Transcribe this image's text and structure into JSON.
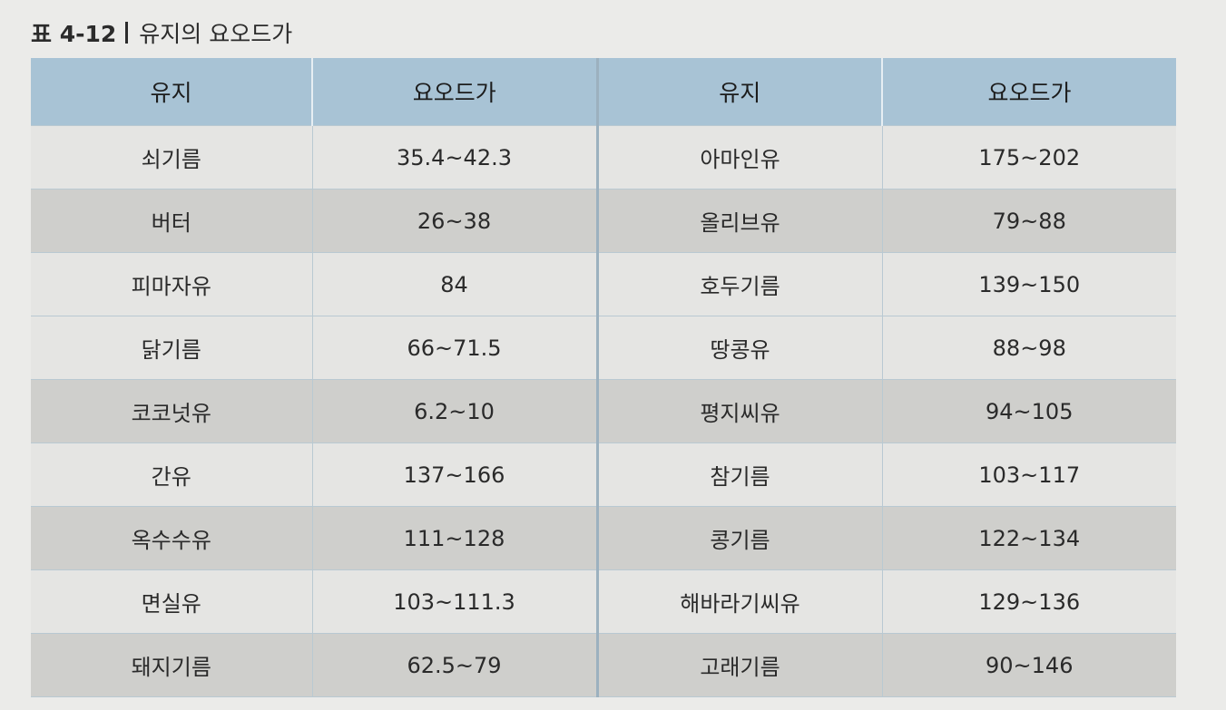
{
  "caption": {
    "label": "표 4-12",
    "title": "유지의 요오드가"
  },
  "table": {
    "headers": [
      "유지",
      "요오드가",
      "유지",
      "요오드가"
    ],
    "rows": [
      {
        "shade": "light",
        "cells": [
          "쇠기름",
          "35.4~42.3",
          "아마인유",
          "175~202"
        ]
      },
      {
        "shade": "dark",
        "cells": [
          "버터",
          "26~38",
          "올리브유",
          "79~88"
        ]
      },
      {
        "shade": "light",
        "cells": [
          "피마자유",
          "84",
          "호두기름",
          "139~150"
        ]
      },
      {
        "shade": "light",
        "cells": [
          "닭기름",
          "66~71.5",
          "땅콩유",
          "88~98"
        ]
      },
      {
        "shade": "dark",
        "cells": [
          "코코넛유",
          "6.2~10",
          "평지씨유",
          "94~105"
        ]
      },
      {
        "shade": "light",
        "cells": [
          "간유",
          "137~166",
          "참기름",
          "103~117"
        ]
      },
      {
        "shade": "dark",
        "cells": [
          "옥수수유",
          "111~128",
          "콩기름",
          "122~134"
        ]
      },
      {
        "shade": "light",
        "cells": [
          "면실유",
          "103~111.3",
          "해바라기씨유",
          "129~136"
        ]
      },
      {
        "shade": "dark",
        "cells": [
          "돼지기름",
          "62.5~79",
          "고래기름",
          "90~146"
        ]
      }
    ]
  },
  "colors": {
    "header_bg": "#a8c3d5",
    "row_light": "#e5e5e3",
    "row_dark": "#cfcfcc",
    "page_bg": "#ebebe9"
  }
}
